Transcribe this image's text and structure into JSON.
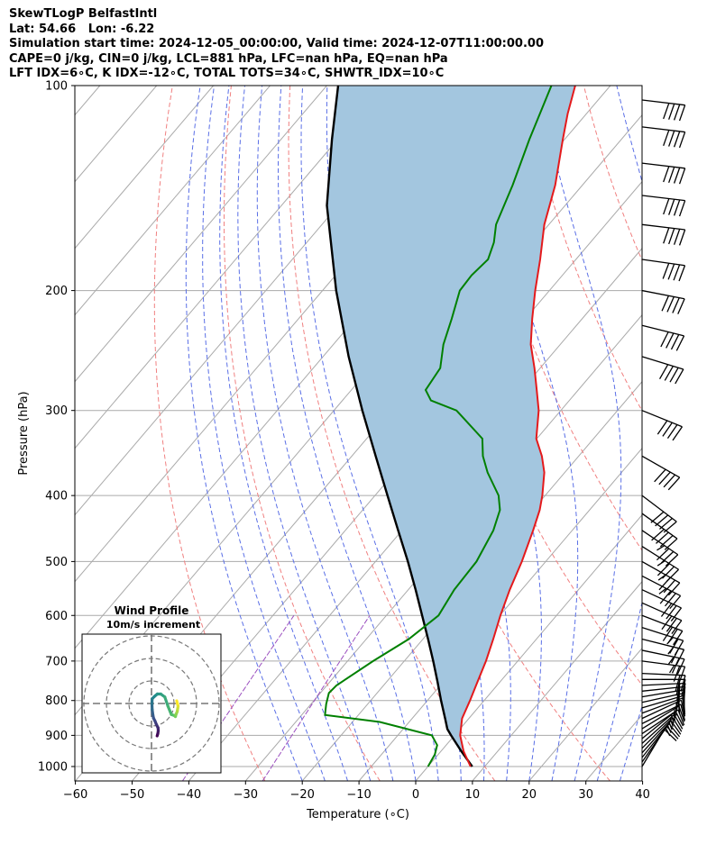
{
  "header": {
    "lines": [
      "SkewTLogP BelfastIntl",
      "Lat: 54.66   Lon: -6.22",
      "Simulation start time: 2024-12-05_00:00:00, Valid time: 2024-12-07T11:00:00.00",
      "CAPE=0 j/kg, CIN=0 j/kg, LCL=881 hPa, LFC=nan hPa, EQ=nan hPa",
      "LFT IDX=6∘C, K IDX=-12∘C, TOTAL TOTS=34∘C, SHWTR_IDX=10∘C"
    ]
  },
  "colors": {
    "temperature": "#e41a1c",
    "dewpoint": "#008000",
    "parcel": "#000000",
    "fill": "#a3c6df",
    "dry_adiabat": "#f08080",
    "moist_adiabat": "#5a6fe6",
    "mixing_ratio": "#9b4fbf",
    "isotherm": "#aaaaaa"
  },
  "chart_data": {
    "type": "skewt",
    "xlabel": "Temperature (∘C)",
    "ylabel": "Pressure (hPa)",
    "xlim": [
      -60,
      40
    ],
    "ylim": [
      1050,
      100
    ],
    "xticks": [
      "−60",
      "−50",
      "−40",
      "−30",
      "−20",
      "−10",
      "0",
      "10",
      "20",
      "30",
      "40"
    ],
    "xtick_values": [
      -60,
      -50,
      -40,
      -30,
      -20,
      -10,
      0,
      10,
      20,
      30,
      40
    ],
    "yticks": [
      "1000",
      "900",
      "800",
      "700",
      "600",
      "500",
      "400",
      "300",
      "200",
      "100"
    ],
    "ytick_values": [
      1000,
      900,
      800,
      700,
      600,
      500,
      400,
      300,
      200,
      100
    ],
    "temperature": {
      "pressure": [
        1000,
        950,
        900,
        850,
        800,
        750,
        700,
        650,
        600,
        550,
        500,
        450,
        420,
        400,
        370,
        350,
        330,
        300,
        280,
        260,
        240,
        220,
        200,
        180,
        160,
        140,
        120,
        110,
        100
      ],
      "temp": [
        7.5,
        4,
        1,
        -1.2,
        -2.5,
        -4,
        -5.6,
        -7.6,
        -9.9,
        -12.1,
        -14.2,
        -16.9,
        -18.8,
        -20.5,
        -23.6,
        -26.5,
        -30.1,
        -33.9,
        -37.3,
        -41,
        -45.2,
        -48.8,
        -52.5,
        -56.3,
        -60.8,
        -64.8,
        -70.3,
        -73.3,
        -76.2
      ]
    },
    "dewpoint": {
      "pressure": [
        1000,
        960,
        930,
        900,
        860,
        840,
        810,
        780,
        760,
        700,
        650,
        600,
        550,
        500,
        450,
        420,
        400,
        370,
        350,
        330,
        300,
        290,
        280,
        260,
        240,
        220,
        200,
        190,
        180,
        170,
        160,
        140,
        120,
        100
      ],
      "dewp": [
        0,
        -0.6,
        -1.6,
        -4,
        -15.2,
        -25.9,
        -27.3,
        -28.5,
        -28.3,
        -25.5,
        -22.5,
        -20.8,
        -21.9,
        -22.2,
        -23.9,
        -25.8,
        -28.2,
        -33.6,
        -36.9,
        -39.6,
        -48.4,
        -54.4,
        -56.9,
        -57.6,
        -60.6,
        -63,
        -65.8,
        -66,
        -65.5,
        -67,
        -69.3,
        -72.3,
        -76.2,
        -80.4
      ]
    },
    "parcel": {
      "pressure": [
        1000,
        950,
        900,
        881,
        850,
        800,
        750,
        700,
        650,
        600,
        550,
        500,
        450,
        400,
        350,
        300,
        250,
        200,
        150,
        120,
        100
      ],
      "temp": [
        7.8,
        3.6,
        -0.6,
        -2.2,
        -4.2,
        -7.6,
        -11.1,
        -14.9,
        -19.1,
        -23.7,
        -28.7,
        -34.3,
        -40.7,
        -47.8,
        -55.8,
        -65,
        -75.5,
        -87.6,
        -102,
        -111,
        -118
      ]
    },
    "cape_area": "filled between parcel and temperature",
    "wind_barbs": {
      "pressure": [
        1000,
        985,
        970,
        955,
        940,
        925,
        910,
        895,
        880,
        865,
        850,
        835,
        820,
        805,
        790,
        775,
        760,
        745,
        730,
        700,
        675,
        650,
        625,
        600,
        575,
        550,
        525,
        500,
        475,
        450,
        425,
        400,
        350,
        300,
        250,
        225,
        200,
        180,
        160,
        145,
        130,
        115,
        105
      ],
      "u_kt": [
        -6,
        -7,
        -8,
        -9,
        -9,
        -10,
        -11,
        -12,
        -13,
        -14,
        -15,
        -16,
        -17,
        -18,
        -18,
        -19,
        -20,
        -21,
        -22,
        -23,
        -24,
        -24,
        -25,
        -26,
        -27,
        -28,
        -29,
        -30,
        -30,
        -31,
        -32,
        -33,
        -35,
        -37,
        -39,
        -40,
        -41,
        -42,
        -42,
        -42,
        -42,
        -42,
        -42
      ],
      "v_kt": [
        -10,
        -10,
        -10,
        -10,
        -9,
        -9,
        -9,
        -8,
        -8,
        -7,
        -7,
        -6,
        -5,
        -4,
        -3,
        -2,
        -1,
        0,
        1,
        3,
        5,
        6,
        8,
        10,
        12,
        13,
        15,
        17,
        19,
        21,
        23,
        25,
        20,
        15,
        12,
        10,
        8,
        6,
        5,
        5,
        5,
        5,
        5
      ]
    },
    "hodograph": {
      "title": "Wind Profile",
      "subtitle": "10m/s increment",
      "ring_step_ms": 10,
      "rings": 3,
      "u_ms": [
        2.5,
        2.8,
        3,
        2.9,
        2.2,
        1.6,
        0.9,
        0.6,
        0.3,
        0.2,
        0.3,
        1.4,
        2.6,
        4.1,
        5.9,
        7.3,
        8.8,
        10.2,
        10.6,
        10.9,
        11.4,
        11.6,
        11.8,
        11.5,
        11.2
      ],
      "v_ms": [
        -14.4,
        -13.4,
        -12.1,
        -10.8,
        -9.4,
        -7.9,
        -6.5,
        -4.9,
        -2.7,
        -0.1,
        2.1,
        3.2,
        4.2,
        4.2,
        2.9,
        -1.2,
        -4.9,
        -5.4,
        -5.8,
        -4.8,
        -3.6,
        -2.4,
        -1.2,
        -0.1,
        1.2
      ]
    }
  }
}
